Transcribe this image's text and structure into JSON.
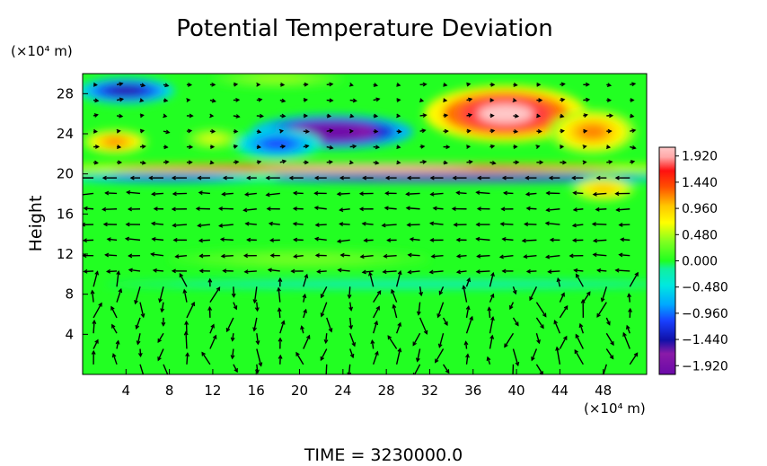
{
  "chart_data": {
    "type": "heatmap",
    "title": "Potential Temperature Deviation",
    "ylabel": "Height",
    "yunit": "(×10⁴ m)",
    "xunit": "(×10⁴ m)",
    "xlim": [
      0,
      52
    ],
    "ylim": [
      0,
      30
    ],
    "xticks": [
      "4",
      "8",
      "12",
      "16",
      "20",
      "24",
      "28",
      "32",
      "36",
      "40",
      "44",
      "48"
    ],
    "yticks": [
      "4",
      "8",
      "12",
      "16",
      "20",
      "24",
      "28"
    ],
    "colorbar": {
      "min": -2.08,
      "max": 2.08,
      "labels": [
        "1.920",
        "1.440",
        "0.960",
        "0.480",
        "0.000",
        "−0.480",
        "−0.960",
        "−1.440",
        "−1.920"
      ],
      "label_values": [
        1.92,
        1.44,
        0.96,
        0.48,
        0.0,
        -0.48,
        -0.96,
        -1.44,
        -1.92
      ],
      "stops": [
        {
          "v": -2.08,
          "c": "#6a0aa8"
        },
        {
          "v": -1.7,
          "c": "#8a1aa8"
        },
        {
          "v": -1.45,
          "c": "#1010a8"
        },
        {
          "v": -1.1,
          "c": "#1840ff"
        },
        {
          "v": -0.8,
          "c": "#00a8ff"
        },
        {
          "v": -0.45,
          "c": "#00e8e0"
        },
        {
          "v": -0.15,
          "c": "#10f0a0"
        },
        {
          "v": 0.0,
          "c": "#20ff20"
        },
        {
          "v": 0.35,
          "c": "#80ff20"
        },
        {
          "v": 0.7,
          "c": "#ffff00"
        },
        {
          "v": 1.0,
          "c": "#ffc800"
        },
        {
          "v": 1.35,
          "c": "#ff5000"
        },
        {
          "v": 1.65,
          "c": "#ff1010"
        },
        {
          "v": 1.9,
          "c": "#ffa8a8"
        },
        {
          "v": 2.08,
          "c": "#ffc8c8"
        }
      ]
    },
    "anomalies": [
      {
        "x": 4,
        "y": 28.3,
        "rx": 4.5,
        "ry": 1.3,
        "v": -1.5
      },
      {
        "x": 18,
        "y": 29.5,
        "rx": 6,
        "ry": 0.9,
        "v": 0.4
      },
      {
        "x": 23,
        "y": 24.2,
        "rx": 7.5,
        "ry": 1.7,
        "v": -2.1
      },
      {
        "x": 18,
        "y": 23.0,
        "rx": 4,
        "ry": 1.5,
        "v": -1.1
      },
      {
        "x": 39,
        "y": 26.0,
        "rx": 7.5,
        "ry": 2.8,
        "v": 2.1
      },
      {
        "x": 47,
        "y": 24.2,
        "rx": 4,
        "ry": 2.2,
        "v": 1.2
      },
      {
        "x": 3,
        "y": 23.2,
        "rx": 3,
        "ry": 1.2,
        "v": 1.2
      },
      {
        "x": 12,
        "y": 23.5,
        "rx": 2.5,
        "ry": 1.0,
        "v": 0.6
      },
      {
        "x": 26,
        "y": 20.6,
        "rx": 30,
        "ry": 0.45,
        "v": 2.1
      },
      {
        "x": 34,
        "y": 19.6,
        "rx": 22,
        "ry": 0.5,
        "v": -1.9
      },
      {
        "x": 8,
        "y": 19.6,
        "rx": 10,
        "ry": 0.5,
        "v": -1.3
      },
      {
        "x": 48,
        "y": 18.5,
        "rx": 3,
        "ry": 1.2,
        "v": 1.0
      },
      {
        "x": 30,
        "y": 9.0,
        "rx": 28,
        "ry": 0.5,
        "v": -0.3
      },
      {
        "x": 20,
        "y": 11.5,
        "rx": 12,
        "ry": 1.0,
        "v": 0.3
      }
    ],
    "time_label": "TIME  =  3230000.0"
  }
}
